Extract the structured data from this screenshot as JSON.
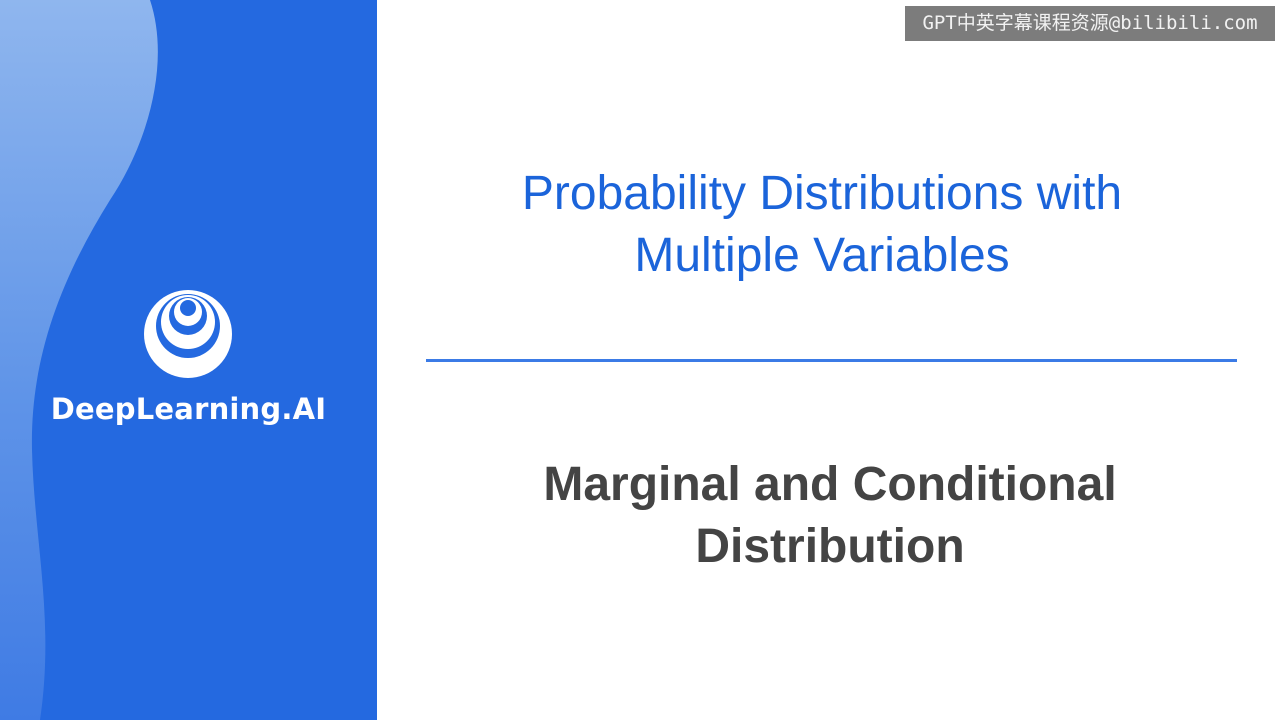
{
  "brand": {
    "name": "DeepLearning.AI",
    "logo_icon": "concentric-circles-logo",
    "panel_color": "#2469e0",
    "wave_color": "#8db4ec"
  },
  "slide": {
    "title_line1": "Probability Distributions with",
    "title_line2": "Multiple Variables",
    "subtitle_line1": "Marginal and Conditional",
    "subtitle_line2": "Distribution",
    "title_color": "#1b64da",
    "subtitle_color": "#444444",
    "divider_color": "#3b7be6"
  },
  "watermark": {
    "text": "GPT中英字幕课程资源@bilibili.com"
  }
}
